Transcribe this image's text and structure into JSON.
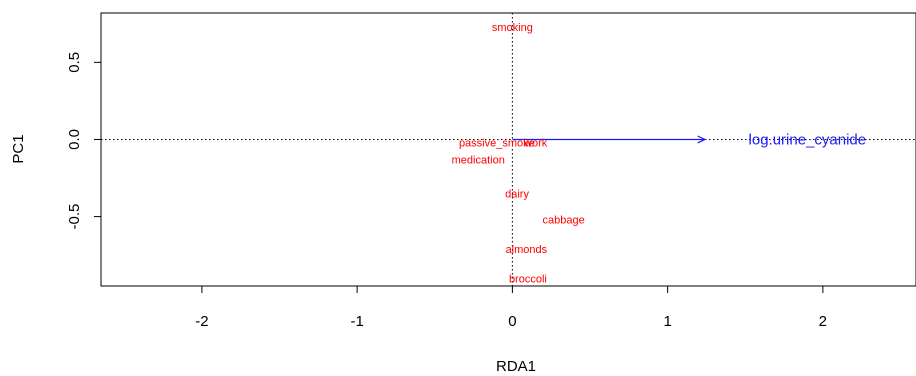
{
  "chart_data": {
    "type": "scatter",
    "title": "",
    "xlabel": "RDA1",
    "ylabel": "PC1",
    "xlim": [
      -2.65,
      2.6
    ],
    "ylim": [
      -0.95,
      0.82
    ],
    "x_ticks": [
      -2,
      -1,
      0,
      1,
      2
    ],
    "x_tick_labels": [
      "-2",
      "-1",
      "0",
      "1",
      "2"
    ],
    "y_ticks": [
      0.5,
      0.0,
      -0.5
    ],
    "y_tick_labels": [
      "0.5",
      "0.0",
      "-0.5"
    ],
    "reference_lines": {
      "x": 0,
      "y": 0,
      "style": "dotted"
    },
    "grid": false,
    "species": [
      {
        "label": "smoking",
        "x": 0.0,
        "y": 0.73
      },
      {
        "label": "passive_smoke",
        "x": -0.1,
        "y": -0.02
      },
      {
        "label": "work",
        "x": 0.15,
        "y": -0.02
      },
      {
        "label": "medication",
        "x": -0.22,
        "y": -0.13
      },
      {
        "label": "dairy",
        "x": 0.03,
        "y": -0.35
      },
      {
        "label": "cabbage",
        "x": 0.33,
        "y": -0.52
      },
      {
        "label": "almonds",
        "x": 0.09,
        "y": -0.71
      },
      {
        "label": "broccoli",
        "x": 0.1,
        "y": -0.9
      }
    ],
    "species_color": "#ff0000",
    "environmental_vectors": [
      {
        "label": "log.urine_cyanide",
        "x": 1.24,
        "y": 0.0,
        "label_x": 1.9,
        "label_y": 0.0
      }
    ],
    "vector_color": "#1a1aff"
  }
}
